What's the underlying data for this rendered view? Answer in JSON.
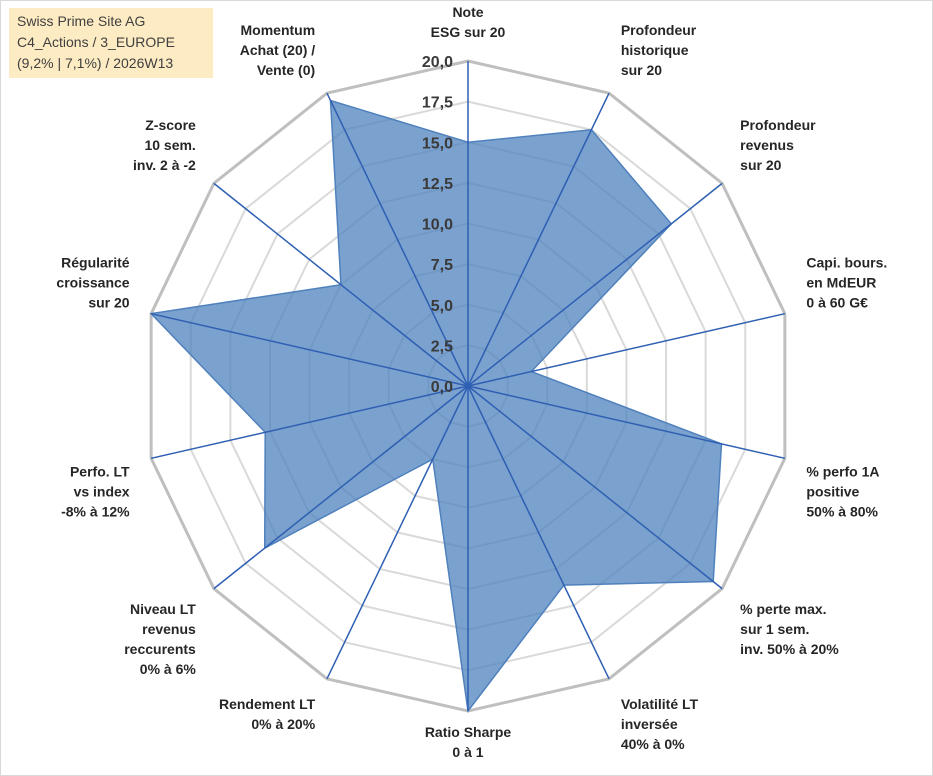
{
  "info": {
    "line1": "Swiss Prime Site AG",
    "line2": "C4_Actions / 3_EUROPE",
    "line3": "(9,2% | 7,1%) / 2026W13"
  },
  "colors": {
    "fill": "#4f81bd",
    "fill_opacity": "0.75",
    "spoke": "#2e5fb3",
    "outer_ring": "#bfbfbf",
    "inner_ring": "#d9d9d9",
    "tick_text": "#3a3a3a"
  },
  "chart_data": {
    "type": "radar",
    "title": "",
    "rmin": 0,
    "rmax": 20,
    "tick_step": 2.5,
    "tick_labels": [
      "0,0",
      "2,5",
      "5,0",
      "7,5",
      "10,0",
      "12,5",
      "15,0",
      "17,5",
      "20,0"
    ],
    "axes": [
      {
        "label": [
          "Note",
          "ESG sur 20"
        ],
        "value": 15.0
      },
      {
        "label": [
          "Profondeur",
          "historique",
          "sur 20"
        ],
        "value": 17.5
      },
      {
        "label": [
          "Profondeur",
          "revenus",
          "sur 20"
        ],
        "value": 16.0
      },
      {
        "label": [
          "Capi. bours.",
          "en MdEUR",
          "0 à 60 G€"
        ],
        "value": 4.0
      },
      {
        "label": [
          "% perfo 1A",
          "positive",
          "50% à 80%"
        ],
        "value": 16.0
      },
      {
        "label": [
          "% perte max.",
          "sur 1 sem.",
          "inv. 50% à 20%"
        ],
        "value": 19.3
      },
      {
        "label": [
          "Volatilité LT",
          "inversée",
          "40% à 0%"
        ],
        "value": 13.6
      },
      {
        "label": [
          "Ratio Sharpe",
          "0 à 1"
        ],
        "value": 20.0
      },
      {
        "label": [
          "Rendement LT",
          "0% à 20%"
        ],
        "value": 5.0
      },
      {
        "label": [
          "Niveau LT",
          "revenus",
          "reccurents",
          "0% à 6%"
        ],
        "value": 16.0
      },
      {
        "label": [
          "Perfo. LT",
          "vs index",
          "-8% à 12%"
        ],
        "value": 12.8
      },
      {
        "label": [
          "Régularité",
          "croissance",
          "sur 20"
        ],
        "value": 20.0
      },
      {
        "label": [
          "Z-score",
          "10 sem.",
          "inv. 2 à -2"
        ],
        "value": 10.0
      },
      {
        "label": [
          "Momentum",
          "Achat (20) /",
          "Vente (0)"
        ],
        "value": 19.5
      }
    ]
  }
}
